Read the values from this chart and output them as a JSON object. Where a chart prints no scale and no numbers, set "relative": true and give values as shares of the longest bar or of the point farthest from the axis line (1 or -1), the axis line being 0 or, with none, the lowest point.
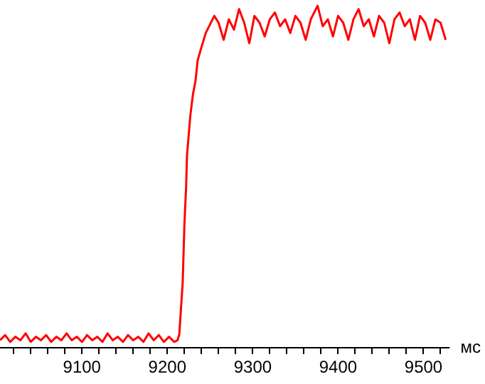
{
  "chart_data": {
    "type": "line",
    "relative": true,
    "xlabel": "мс",
    "xlim": [
      9004,
      9530
    ],
    "xticks": [
      {
        "value": 9020,
        "label": null
      },
      {
        "value": 9040,
        "label": null
      },
      {
        "value": 9060,
        "label": null
      },
      {
        "value": 9080,
        "label": null
      },
      9100,
      {
        "value": 9120,
        "label": null
      },
      {
        "value": 9140,
        "label": null
      },
      {
        "value": 9160,
        "label": null
      },
      {
        "value": 9180,
        "label": null
      },
      9200,
      {
        "value": 9220,
        "label": null
      },
      {
        "value": 9240,
        "label": null
      },
      {
        "value": 9260,
        "label": null
      },
      {
        "value": 9280,
        "label": null
      },
      9300,
      {
        "value": 9320,
        "label": null
      },
      {
        "value": 9340,
        "label": null
      },
      {
        "value": 9360,
        "label": null
      },
      {
        "value": 9380,
        "label": null
      },
      9400,
      {
        "value": 9420,
        "label": null
      },
      {
        "value": 9440,
        "label": null
      },
      {
        "value": 9460,
        "label": null
      },
      {
        "value": 9480,
        "label": null
      },
      9500,
      {
        "value": 9520,
        "label": null
      }
    ],
    "x": [
      9004,
      9010,
      9016,
      9022,
      9028,
      9034,
      9040,
      9046,
      9052,
      9058,
      9064,
      9070,
      9076,
      9082,
      9088,
      9094,
      9100,
      9106,
      9112,
      9118,
      9124,
      9130,
      9136,
      9142,
      9148,
      9154,
      9160,
      9166,
      9172,
      9178,
      9184,
      9190,
      9196,
      9202,
      9208,
      9212,
      9214,
      9218,
      9220,
      9222,
      9223,
      9227,
      9230,
      9233,
      9235.5,
      9239,
      9245,
      9255,
      9260,
      9266,
      9272,
      9278,
      9284,
      9290,
      9296,
      9302,
      9308,
      9314,
      9320,
      9326,
      9332,
      9338,
      9344,
      9350,
      9356,
      9362,
      9368,
      9376,
      9382,
      9388,
      9394,
      9400,
      9406,
      9412,
      9418,
      9424,
      9430,
      9436,
      9442,
      9448,
      9454,
      9460,
      9466,
      9472,
      9478,
      9484,
      9490,
      9496,
      9502,
      9508,
      9514,
      9520,
      9526
    ],
    "series": [
      {
        "color": "#ff0000",
        "values": [
          0.02,
          0.035,
          0.015,
          0.03,
          0.02,
          0.04,
          0.015,
          0.03,
          0.02,
          0.035,
          0.015,
          0.03,
          0.02,
          0.04,
          0.02,
          0.03,
          0.015,
          0.035,
          0.02,
          0.03,
          0.015,
          0.04,
          0.02,
          0.03,
          0.015,
          0.035,
          0.02,
          0.03,
          0.015,
          0.04,
          0.02,
          0.035,
          0.015,
          0.03,
          0.015,
          0.02,
          0.037,
          0.19,
          0.36,
          0.47,
          0.56,
          0.68,
          0.74,
          0.78,
          0.84,
          0.87,
          0.92,
          0.97,
          0.95,
          0.9,
          0.96,
          0.93,
          0.99,
          0.95,
          0.89,
          0.97,
          0.95,
          0.91,
          0.96,
          0.98,
          0.94,
          0.96,
          0.92,
          0.97,
          0.95,
          0.9,
          0.96,
          1.0,
          0.94,
          0.96,
          0.91,
          0.97,
          0.95,
          0.9,
          0.96,
          0.99,
          0.94,
          0.96,
          0.91,
          0.97,
          0.95,
          0.89,
          0.96,
          0.98,
          0.94,
          0.96,
          0.9,
          0.97,
          0.95,
          0.9,
          0.96,
          0.95,
          0.9
        ]
      }
    ],
    "grid": false,
    "marker": "none",
    "line_style": "solid"
  }
}
